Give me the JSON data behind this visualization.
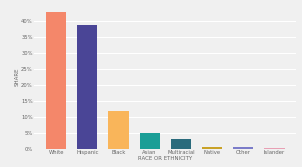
{
  "categories": [
    "White",
    "Hispanic",
    "Black",
    "Asian",
    "Multiracial",
    "Native",
    "Other",
    "Islander"
  ],
  "values": [
    43,
    39,
    12,
    5,
    3,
    0.5,
    0.4,
    0.3
  ],
  "bar_colors": [
    "#f4876a",
    "#4a4596",
    "#f9b55a",
    "#1a9e96",
    "#2a6b7c",
    "#c9a227",
    "#7b7cc9",
    "#e8a0b4"
  ],
  "xlabel": "RACE OR ETHNICITY",
  "ylabel": "SHARE",
  "ylim": [
    0,
    45
  ],
  "yticks": [
    0,
    5,
    10,
    15,
    20,
    25,
    30,
    35,
    40
  ],
  "ytick_labels": [
    "0%",
    "5%",
    "10%",
    "15%",
    "20%",
    "25%",
    "30%",
    "35%",
    "40%"
  ],
  "background_color": "#f0f0f0",
  "grid_color": "#ffffff",
  "text_color": "#666666",
  "xlabel_fontsize": 4,
  "ylabel_fontsize": 4,
  "tick_fontsize": 3.8,
  "bar_width": 0.65
}
